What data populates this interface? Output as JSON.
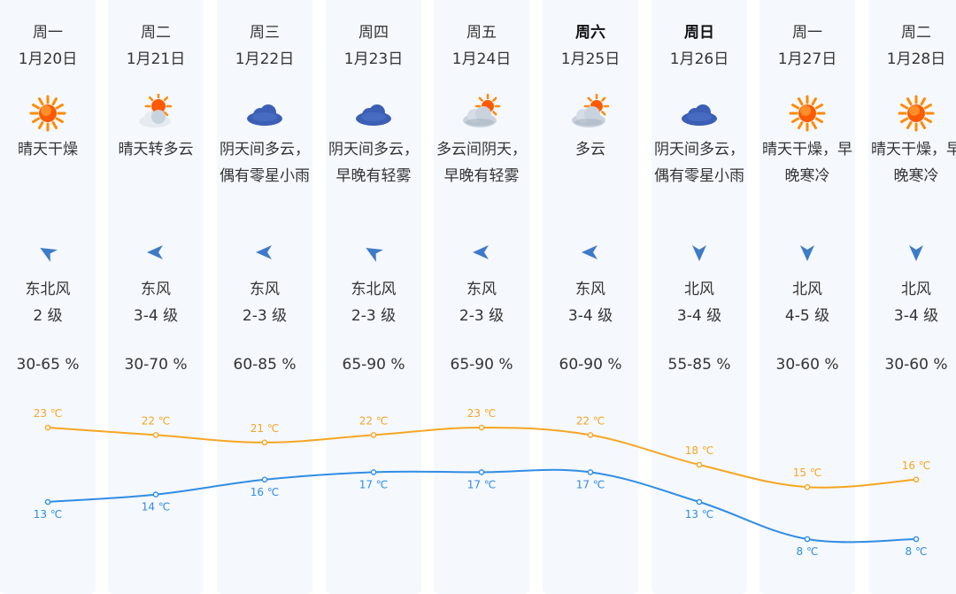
{
  "forecast": {
    "days": [
      {
        "weekday": "周一",
        "date": "1月20日",
        "bold": false,
        "icon": "sun-icon",
        "desc": "晴天干燥",
        "wind_dir": "东北风",
        "wind_icon": "wind-arrow-northeast-icon",
        "wind_level": "2 级",
        "humidity": "30-65 %",
        "high": "23 ℃",
        "low": "13 ℃"
      },
      {
        "weekday": "周二",
        "date": "1月21日",
        "bold": false,
        "icon": "sun-cloud-icon",
        "desc": "晴天转多云",
        "wind_dir": "东风",
        "wind_icon": "wind-arrow-east-icon",
        "wind_level": "3-4 级",
        "humidity": "30-70 %",
        "high": "22 ℃",
        "low": "14 ℃"
      },
      {
        "weekday": "周三",
        "date": "1月22日",
        "bold": false,
        "icon": "cloud-icon",
        "desc": "阴天间多云，偶有零星小雨",
        "wind_dir": "东风",
        "wind_icon": "wind-arrow-east-icon",
        "wind_level": "2-3 级",
        "humidity": "60-85 %",
        "high": "21 ℃",
        "low": "16 ℃"
      },
      {
        "weekday": "周四",
        "date": "1月23日",
        "bold": false,
        "icon": "cloud-icon",
        "desc": "阴天间多云，早晚有轻雾",
        "wind_dir": "东北风",
        "wind_icon": "wind-arrow-northeast-icon",
        "wind_level": "2-3 级",
        "humidity": "65-90 %",
        "high": "22 ℃",
        "low": "17 ℃"
      },
      {
        "weekday": "周五",
        "date": "1月24日",
        "bold": false,
        "icon": "cloud-sun-icon",
        "desc": "多云间阴天，早晚有轻雾",
        "wind_dir": "东风",
        "wind_icon": "wind-arrow-east-icon",
        "wind_level": "2-3 级",
        "humidity": "65-90 %",
        "high": "23 ℃",
        "low": "17 ℃"
      },
      {
        "weekday": "周六",
        "date": "1月25日",
        "bold": true,
        "icon": "cloud-sun-icon",
        "desc": "多云",
        "wind_dir": "东风",
        "wind_icon": "wind-arrow-east-icon",
        "wind_level": "3-4 级",
        "humidity": "60-90 %",
        "high": "22 ℃",
        "low": "17 ℃"
      },
      {
        "weekday": "周日",
        "date": "1月26日",
        "bold": true,
        "icon": "cloud-icon",
        "desc": "阴天间多云，偶有零星小雨",
        "wind_dir": "北风",
        "wind_icon": "wind-arrow-north-icon",
        "wind_level": "3-4 级",
        "humidity": "55-85 %",
        "high": "18 ℃",
        "low": "13 ℃"
      },
      {
        "weekday": "周一",
        "date": "1月27日",
        "bold": false,
        "icon": "sun-icon",
        "desc": "晴天干燥，早晚寒冷",
        "wind_dir": "北风",
        "wind_icon": "wind-arrow-north-icon",
        "wind_level": "4-5 级",
        "humidity": "30-60 %",
        "high": "15 ℃",
        "low": "8 ℃"
      },
      {
        "weekday": "周二",
        "date": "1月28日",
        "bold": false,
        "icon": "sun-icon",
        "desc": "晴天干燥，早晚寒冷",
        "wind_dir": "北风",
        "wind_icon": "wind-arrow-north-icon",
        "wind_level": "3-4 级",
        "humidity": "30-60 %",
        "high": "16 ℃",
        "low": "8 ℃"
      }
    ]
  },
  "chart_data": {
    "type": "line",
    "categories": [
      "1月20日",
      "1月21日",
      "1月22日",
      "1月23日",
      "1月24日",
      "1月25日",
      "1月26日",
      "1月27日",
      "1月28日"
    ],
    "series": [
      {
        "values": [
          23,
          22,
          21,
          22,
          23,
          22,
          18,
          15,
          16
        ],
        "color": "#f5a623"
      },
      {
        "values": [
          13,
          14,
          16,
          17,
          17,
          17,
          13,
          8,
          8
        ],
        "color": "#2f8de4"
      }
    ]
  },
  "colors": {
    "sun": "#ff8a00",
    "sun_core": "#ff5a00",
    "cloud_dark": "#3b5fb5",
    "cloud_light": "#c9d3de",
    "wind_arrow": "#3d7bc8",
    "high_line": "#f5a623",
    "low_line": "#2f8de4"
  }
}
